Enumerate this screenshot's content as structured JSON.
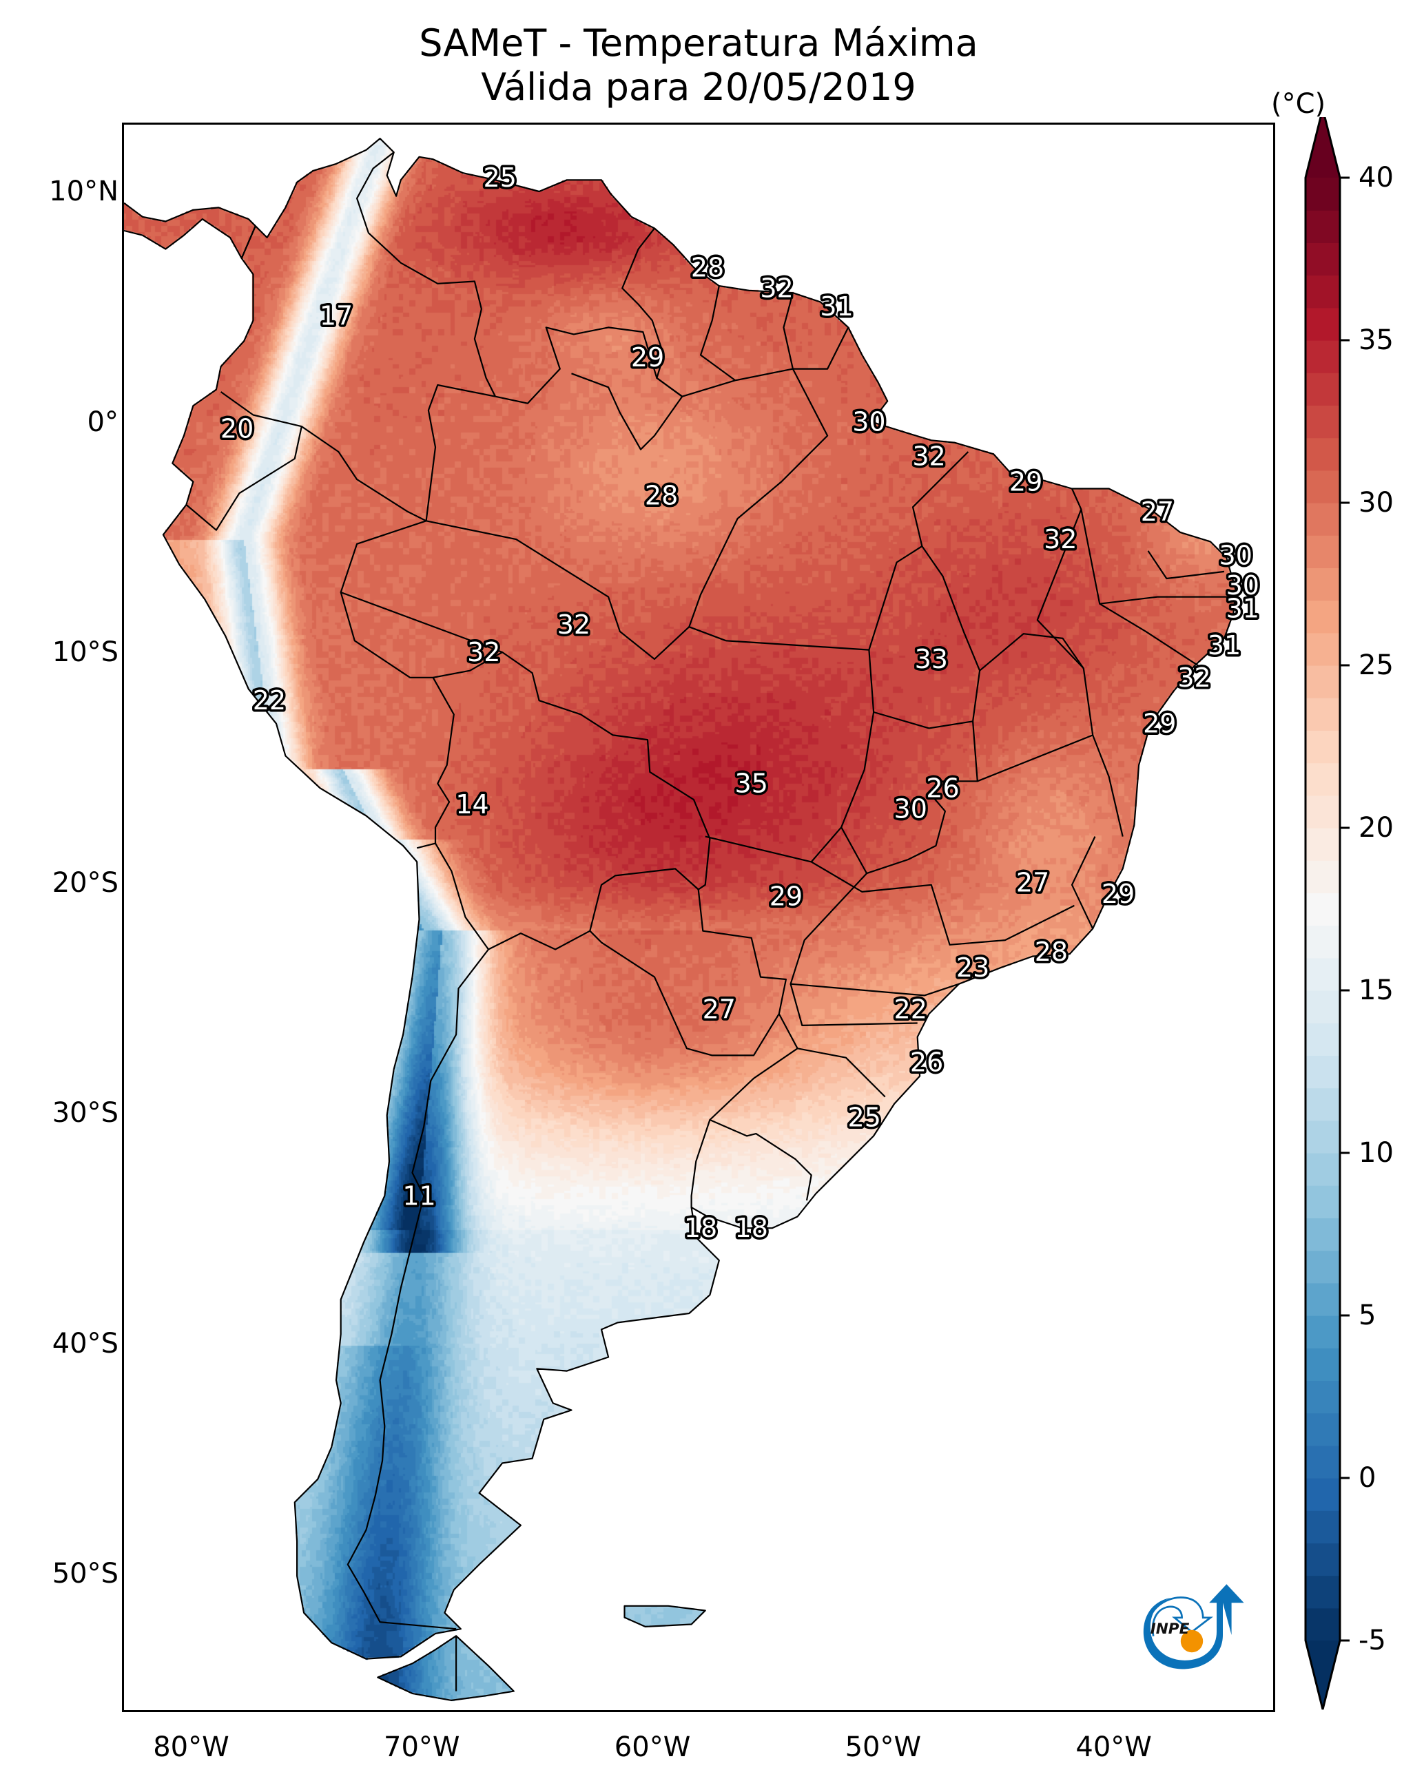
{
  "title": {
    "line1": "SAMeT - Temperatura Máxima",
    "line2": "Válida para 20/05/2019"
  },
  "logo": {
    "text": "INPE",
    "colors": {
      "blue": "#0b72b9",
      "orange": "#f39200"
    }
  },
  "chart_data": {
    "type": "heatmap",
    "subtype": "geographic temperature field with station annotations",
    "title": "SAMeT - Temperatura Máxima",
    "subtitle": "Válida para 20/05/2019",
    "variable": "Temperatura Máxima",
    "units": "(°C)",
    "region": "South America",
    "extent": {
      "lon": [
        -83,
        -33
      ],
      "lat": [
        -56,
        13
      ]
    },
    "xticks": [
      {
        "value": -80,
        "label": "80°W"
      },
      {
        "value": -70,
        "label": "70°W"
      },
      {
        "value": -60,
        "label": "60°W"
      },
      {
        "value": -50,
        "label": "50°W"
      },
      {
        "value": -40,
        "label": "40°W"
      }
    ],
    "yticks": [
      {
        "value": 10,
        "label": "10°N"
      },
      {
        "value": 0,
        "label": "0°"
      },
      {
        "value": -10,
        "label": "10°S"
      },
      {
        "value": -20,
        "label": "20°S"
      },
      {
        "value": -30,
        "label": "30°S"
      },
      {
        "value": -40,
        "label": "40°S"
      },
      {
        "value": -50,
        "label": "50°S"
      }
    ],
    "colorbar": {
      "label": "(°C)",
      "colormap": "RdBu_r",
      "min": -5,
      "max": 40,
      "step": 1,
      "extend": "both",
      "orientation": "vertical",
      "placement": "right",
      "ticks": [
        40,
        35,
        30,
        25,
        20,
        15,
        10,
        5,
        0,
        -5
      ],
      "tick_labels": [
        "40",
        "35",
        "30",
        "25",
        "20",
        "15",
        "10",
        "5",
        "0",
        "-5"
      ]
    },
    "grid": false,
    "stations": [
      {
        "value": 25,
        "lon": -66.7,
        "lat": 10.7
      },
      {
        "value": 17,
        "lon": -73.8,
        "lat": 4.7
      },
      {
        "value": 28,
        "lon": -57.7,
        "lat": 6.8
      },
      {
        "value": 32,
        "lon": -54.7,
        "lat": 5.9
      },
      {
        "value": 31,
        "lon": -52.1,
        "lat": 5.1
      },
      {
        "value": 29,
        "lon": -60.3,
        "lat": 2.9
      },
      {
        "value": 20,
        "lon": -78.1,
        "lat": -0.2
      },
      {
        "value": 30,
        "lon": -50.7,
        "lat": 0.1
      },
      {
        "value": 32,
        "lon": -48.1,
        "lat": -1.4
      },
      {
        "value": 28,
        "lon": -59.7,
        "lat": -3.1
      },
      {
        "value": 29,
        "lon": -43.9,
        "lat": -2.5
      },
      {
        "value": 27,
        "lon": -38.2,
        "lat": -3.8
      },
      {
        "value": 32,
        "lon": -42.4,
        "lat": -5.0
      },
      {
        "value": 30,
        "lon": -34.8,
        "lat": -5.7
      },
      {
        "value": 30,
        "lon": -34.5,
        "lat": -7.0
      },
      {
        "value": 31,
        "lon": -34.5,
        "lat": -8.0
      },
      {
        "value": 32,
        "lon": -63.5,
        "lat": -8.7
      },
      {
        "value": 32,
        "lon": -67.4,
        "lat": -9.9
      },
      {
        "value": 33,
        "lon": -48.0,
        "lat": -10.2
      },
      {
        "value": 31,
        "lon": -35.3,
        "lat": -9.6
      },
      {
        "value": 32,
        "lon": -36.6,
        "lat": -11.0
      },
      {
        "value": 22,
        "lon": -76.7,
        "lat": -12.0
      },
      {
        "value": 29,
        "lon": -38.1,
        "lat": -13.0
      },
      {
        "value": 14,
        "lon": -67.9,
        "lat": -16.5
      },
      {
        "value": 35,
        "lon": -55.8,
        "lat": -15.6
      },
      {
        "value": 26,
        "lon": -47.5,
        "lat": -15.8
      },
      {
        "value": 30,
        "lon": -48.9,
        "lat": -16.7
      },
      {
        "value": 27,
        "lon": -43.6,
        "lat": -19.9
      },
      {
        "value": 29,
        "lon": -39.9,
        "lat": -20.4
      },
      {
        "value": 29,
        "lon": -54.3,
        "lat": -20.5
      },
      {
        "value": 28,
        "lon": -42.8,
        "lat": -22.9
      },
      {
        "value": 23,
        "lon": -46.2,
        "lat": -23.6
      },
      {
        "value": 27,
        "lon": -57.2,
        "lat": -25.4
      },
      {
        "value": 22,
        "lon": -48.9,
        "lat": -25.4
      },
      {
        "value": 26,
        "lon": -48.2,
        "lat": -27.7
      },
      {
        "value": 25,
        "lon": -50.9,
        "lat": -30.1
      },
      {
        "value": 11,
        "lon": -70.2,
        "lat": -33.5
      },
      {
        "value": 18,
        "lon": -58.0,
        "lat": -34.9
      },
      {
        "value": 18,
        "lon": -55.8,
        "lat": -34.9
      }
    ]
  }
}
